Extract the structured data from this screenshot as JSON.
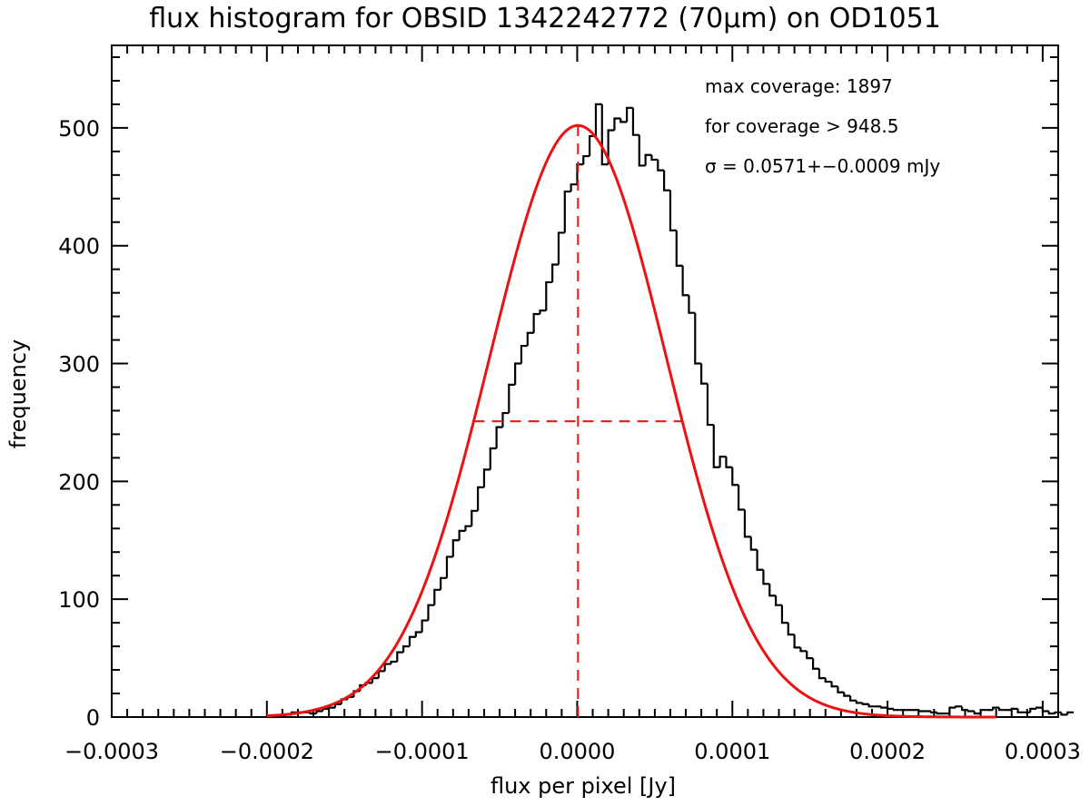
{
  "chart_data": {
    "type": "bar",
    "title": "flux histogram for OBSID 1342242772 (70μm) on OD1051",
    "xlabel": "flux per pixel [Jy]",
    "ylabel": "frequency",
    "xlim": [
      -0.0003,
      0.00031
    ],
    "ylim": [
      0,
      570
    ],
    "x_ticks": [
      -0.0003,
      -0.0002,
      -0.0001,
      0.0,
      0.0001,
      0.0002,
      0.0003
    ],
    "x_tick_labels": [
      "−0.0003",
      "−0.0002",
      "−0.0001",
      "0.0000",
      "0.0001",
      "0.0002",
      "0.0003"
    ],
    "y_ticks": [
      0,
      100,
      200,
      300,
      400,
      500
    ],
    "y_tick_labels": [
      "0",
      "100",
      "200",
      "300",
      "400",
      "500"
    ],
    "annotations": [
      "max coverage: 1897",
      "for coverage > 948.5",
      "σ = 0.0571+−0.0009 mJy"
    ],
    "histogram": {
      "name": "observed flux histogram",
      "color": "#000000",
      "bin_start": -0.0002,
      "bin_width": 4e-06,
      "counts": [
        0,
        0,
        1,
        2,
        4,
        4,
        4,
        3,
        5,
        7,
        8,
        11,
        15,
        17,
        22,
        27,
        29,
        33,
        39,
        45,
        47,
        55,
        60,
        68,
        72,
        82,
        95,
        108,
        118,
        136,
        150,
        158,
        162,
        175,
        195,
        210,
        228,
        246,
        258,
        282,
        300,
        315,
        326,
        342,
        345,
        369,
        384,
        411,
        446,
        452,
        469,
        476,
        493,
        520,
        469,
        498,
        508,
        505,
        517,
        494,
        468,
        477,
        473,
        464,
        447,
        413,
        383,
        358,
        343,
        300,
        283,
        248,
        212,
        221,
        212,
        197,
        176,
        153,
        142,
        125,
        113,
        103,
        95,
        80,
        70,
        59,
        56,
        50,
        41,
        33,
        30,
        26,
        21,
        18,
        14,
        12,
        11,
        9,
        9,
        8,
        7,
        6,
        6,
        6,
        6,
        5,
        5,
        4,
        3,
        3,
        8,
        9,
        6,
        5,
        3,
        6,
        6,
        8,
        6,
        6,
        7,
        4,
        4,
        7,
        8,
        5,
        3,
        4,
        2,
        4
      ]
    },
    "series": [
      {
        "name": "gaussian fit",
        "color": "#ee1111",
        "type": "line",
        "amplitude": 502,
        "center": 5e-07,
        "sigma": 5.71e-05,
        "x_range": [
          -0.0002,
          0.00027
        ]
      },
      {
        "name": "fit center (dashed)",
        "color": "#ee1111",
        "type": "vline",
        "x": 5e-07,
        "y_range": [
          0,
          502
        ]
      },
      {
        "name": "half maximum width (dashed)",
        "color": "#ee1111",
        "type": "hline",
        "y": 251,
        "x_range": [
          -6.67e-05,
          6.77e-05
        ]
      }
    ]
  }
}
